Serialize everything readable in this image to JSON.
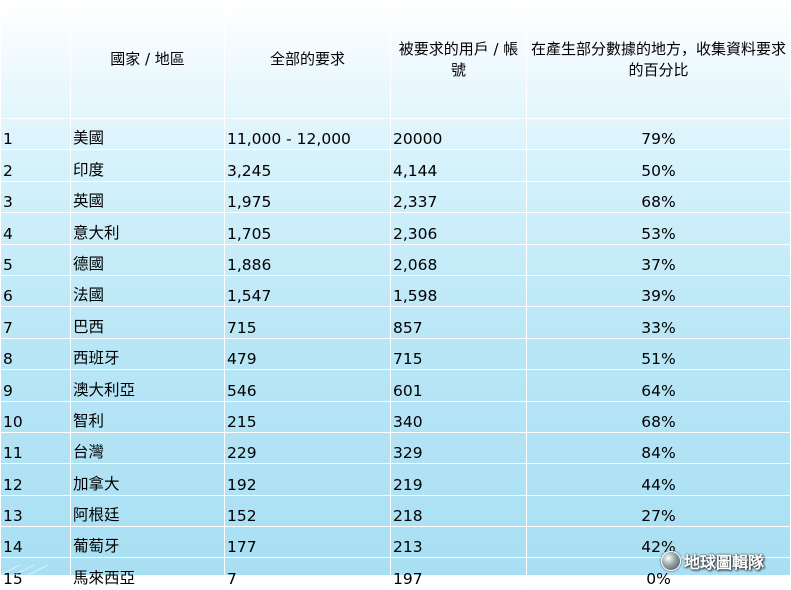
{
  "headers": [
    "",
    "國家 / 地區",
    "全部的要求",
    "被要求的用戶 / 帳號",
    "在產生部分數據的地方，收集資料要求的百分比"
  ],
  "rows": [
    [
      "1",
      "美國",
      "11,000 - 12,000",
      "20000",
      "79%"
    ],
    [
      "2",
      "印度",
      "3,245",
      "4,144",
      "50%"
    ],
    [
      "3",
      "英國",
      "1,975",
      "2,337",
      "68%"
    ],
    [
      "4",
      "意大利",
      "1,705",
      "2,306",
      "53%"
    ],
    [
      "5",
      "德國",
      "1,886",
      "2,068",
      "37%"
    ],
    [
      "6",
      "法國",
      "1,547",
      "1,598",
      "39%"
    ],
    [
      "7",
      "巴西",
      "715",
      "857",
      "33%"
    ],
    [
      "8",
      "西班牙",
      "479",
      "715",
      "51%"
    ],
    [
      "9",
      "澳大利亞",
      "546",
      "601",
      "64%"
    ],
    [
      "10",
      "智利",
      "215",
      "340",
      "68%"
    ],
    [
      "11",
      "台灣",
      "229",
      "329",
      "84%"
    ],
    [
      "12",
      "加拿大",
      "192",
      "219",
      "44%"
    ],
    [
      "13",
      "阿根廷",
      "152",
      "218",
      "27%"
    ],
    [
      "14",
      "葡萄牙",
      "177",
      "213",
      "42%"
    ],
    [
      "15",
      "馬來西亞",
      "7",
      "197",
      "0%"
    ]
  ],
  "watermark": "地球圖輯隊"
}
